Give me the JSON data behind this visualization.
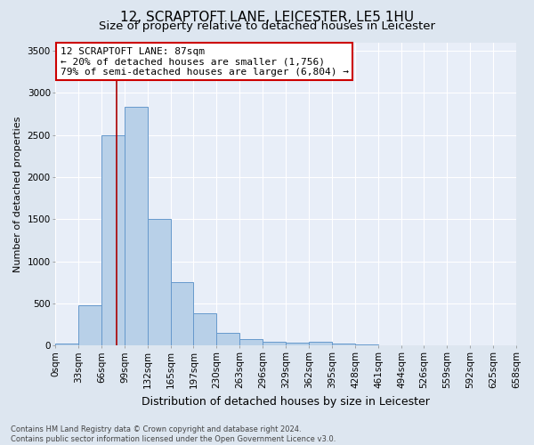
{
  "title": "12, SCRAPTOFT LANE, LEICESTER, LE5 1HU",
  "subtitle": "Size of property relative to detached houses in Leicester",
  "xlabel": "Distribution of detached houses by size in Leicester",
  "ylabel": "Number of detached properties",
  "bar_color": "#b8d0e8",
  "bar_edge_color": "#6699cc",
  "vline_color": "#aa0000",
  "vline_x": 87,
  "annotation_line1": "12 SCRAPTOFT LANE: 87sqm",
  "annotation_line2": "← 20% of detached houses are smaller (1,756)",
  "annotation_line3": "79% of semi-detached houses are larger (6,804) →",
  "annotation_box_color": "#ffffff",
  "annotation_box_edge_color": "#cc0000",
  "footer_text": "Contains HM Land Registry data © Crown copyright and database right 2024.\nContains public sector information licensed under the Open Government Licence v3.0.",
  "bin_edges": [
    0,
    33,
    66,
    99,
    132,
    165,
    197,
    230,
    263,
    296,
    329,
    362,
    395,
    428,
    461,
    494,
    526,
    559,
    592,
    625,
    658
  ],
  "bin_labels": [
    "0sqm",
    "33sqm",
    "66sqm",
    "99sqm",
    "132sqm",
    "165sqm",
    "197sqm",
    "230sqm",
    "263sqm",
    "296sqm",
    "329sqm",
    "362sqm",
    "395sqm",
    "428sqm",
    "461sqm",
    "494sqm",
    "526sqm",
    "559sqm",
    "592sqm",
    "625sqm",
    "658sqm"
  ],
  "bar_heights": [
    25,
    475,
    2500,
    2830,
    1500,
    750,
    385,
    150,
    80,
    50,
    35,
    50,
    30,
    15,
    5,
    5,
    5,
    5,
    5,
    5
  ],
  "ylim": [
    0,
    3600
  ],
  "yticks": [
    0,
    500,
    1000,
    1500,
    2000,
    2500,
    3000,
    3500
  ],
  "xlim": [
    0,
    658
  ],
  "background_color": "#dde6f0",
  "plot_background": "#e8eef8",
  "grid_color": "#ffffff",
  "title_fontsize": 11,
  "subtitle_fontsize": 9.5,
  "xlabel_fontsize": 9,
  "ylabel_fontsize": 8,
  "tick_fontsize": 7.5,
  "footer_fontsize": 6,
  "annotation_fontsize": 8
}
